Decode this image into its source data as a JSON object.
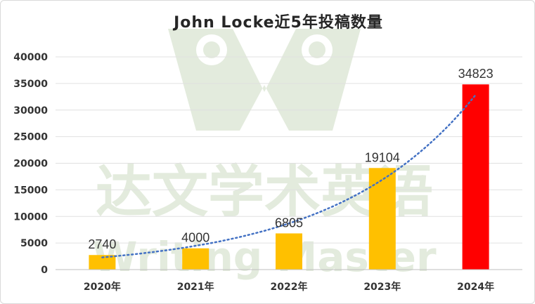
{
  "chart_data": {
    "type": "bar",
    "title": "John Locke近5年投稿数量",
    "categories": [
      "2020年",
      "2021年",
      "2022年",
      "2023年",
      "2024年"
    ],
    "values": [
      2740,
      4000,
      6805,
      19104,
      34823
    ],
    "bar_colors": [
      "#ffc000",
      "#ffc000",
      "#ffc000",
      "#ffc000",
      "#ff0000"
    ],
    "xlabel": "",
    "ylabel": "",
    "ylim": [
      0,
      40000
    ],
    "yticks": [
      0,
      5000,
      10000,
      15000,
      20000,
      25000,
      30000,
      35000,
      40000
    ],
    "grid": true,
    "legend": "none",
    "trendline": {
      "type": "exponential",
      "style": "dotted",
      "color": "#4472c4"
    }
  },
  "watermark": {
    "cn_text": "达文学术英语",
    "en_text": "Writing Master",
    "color": "#e3ebdd"
  }
}
